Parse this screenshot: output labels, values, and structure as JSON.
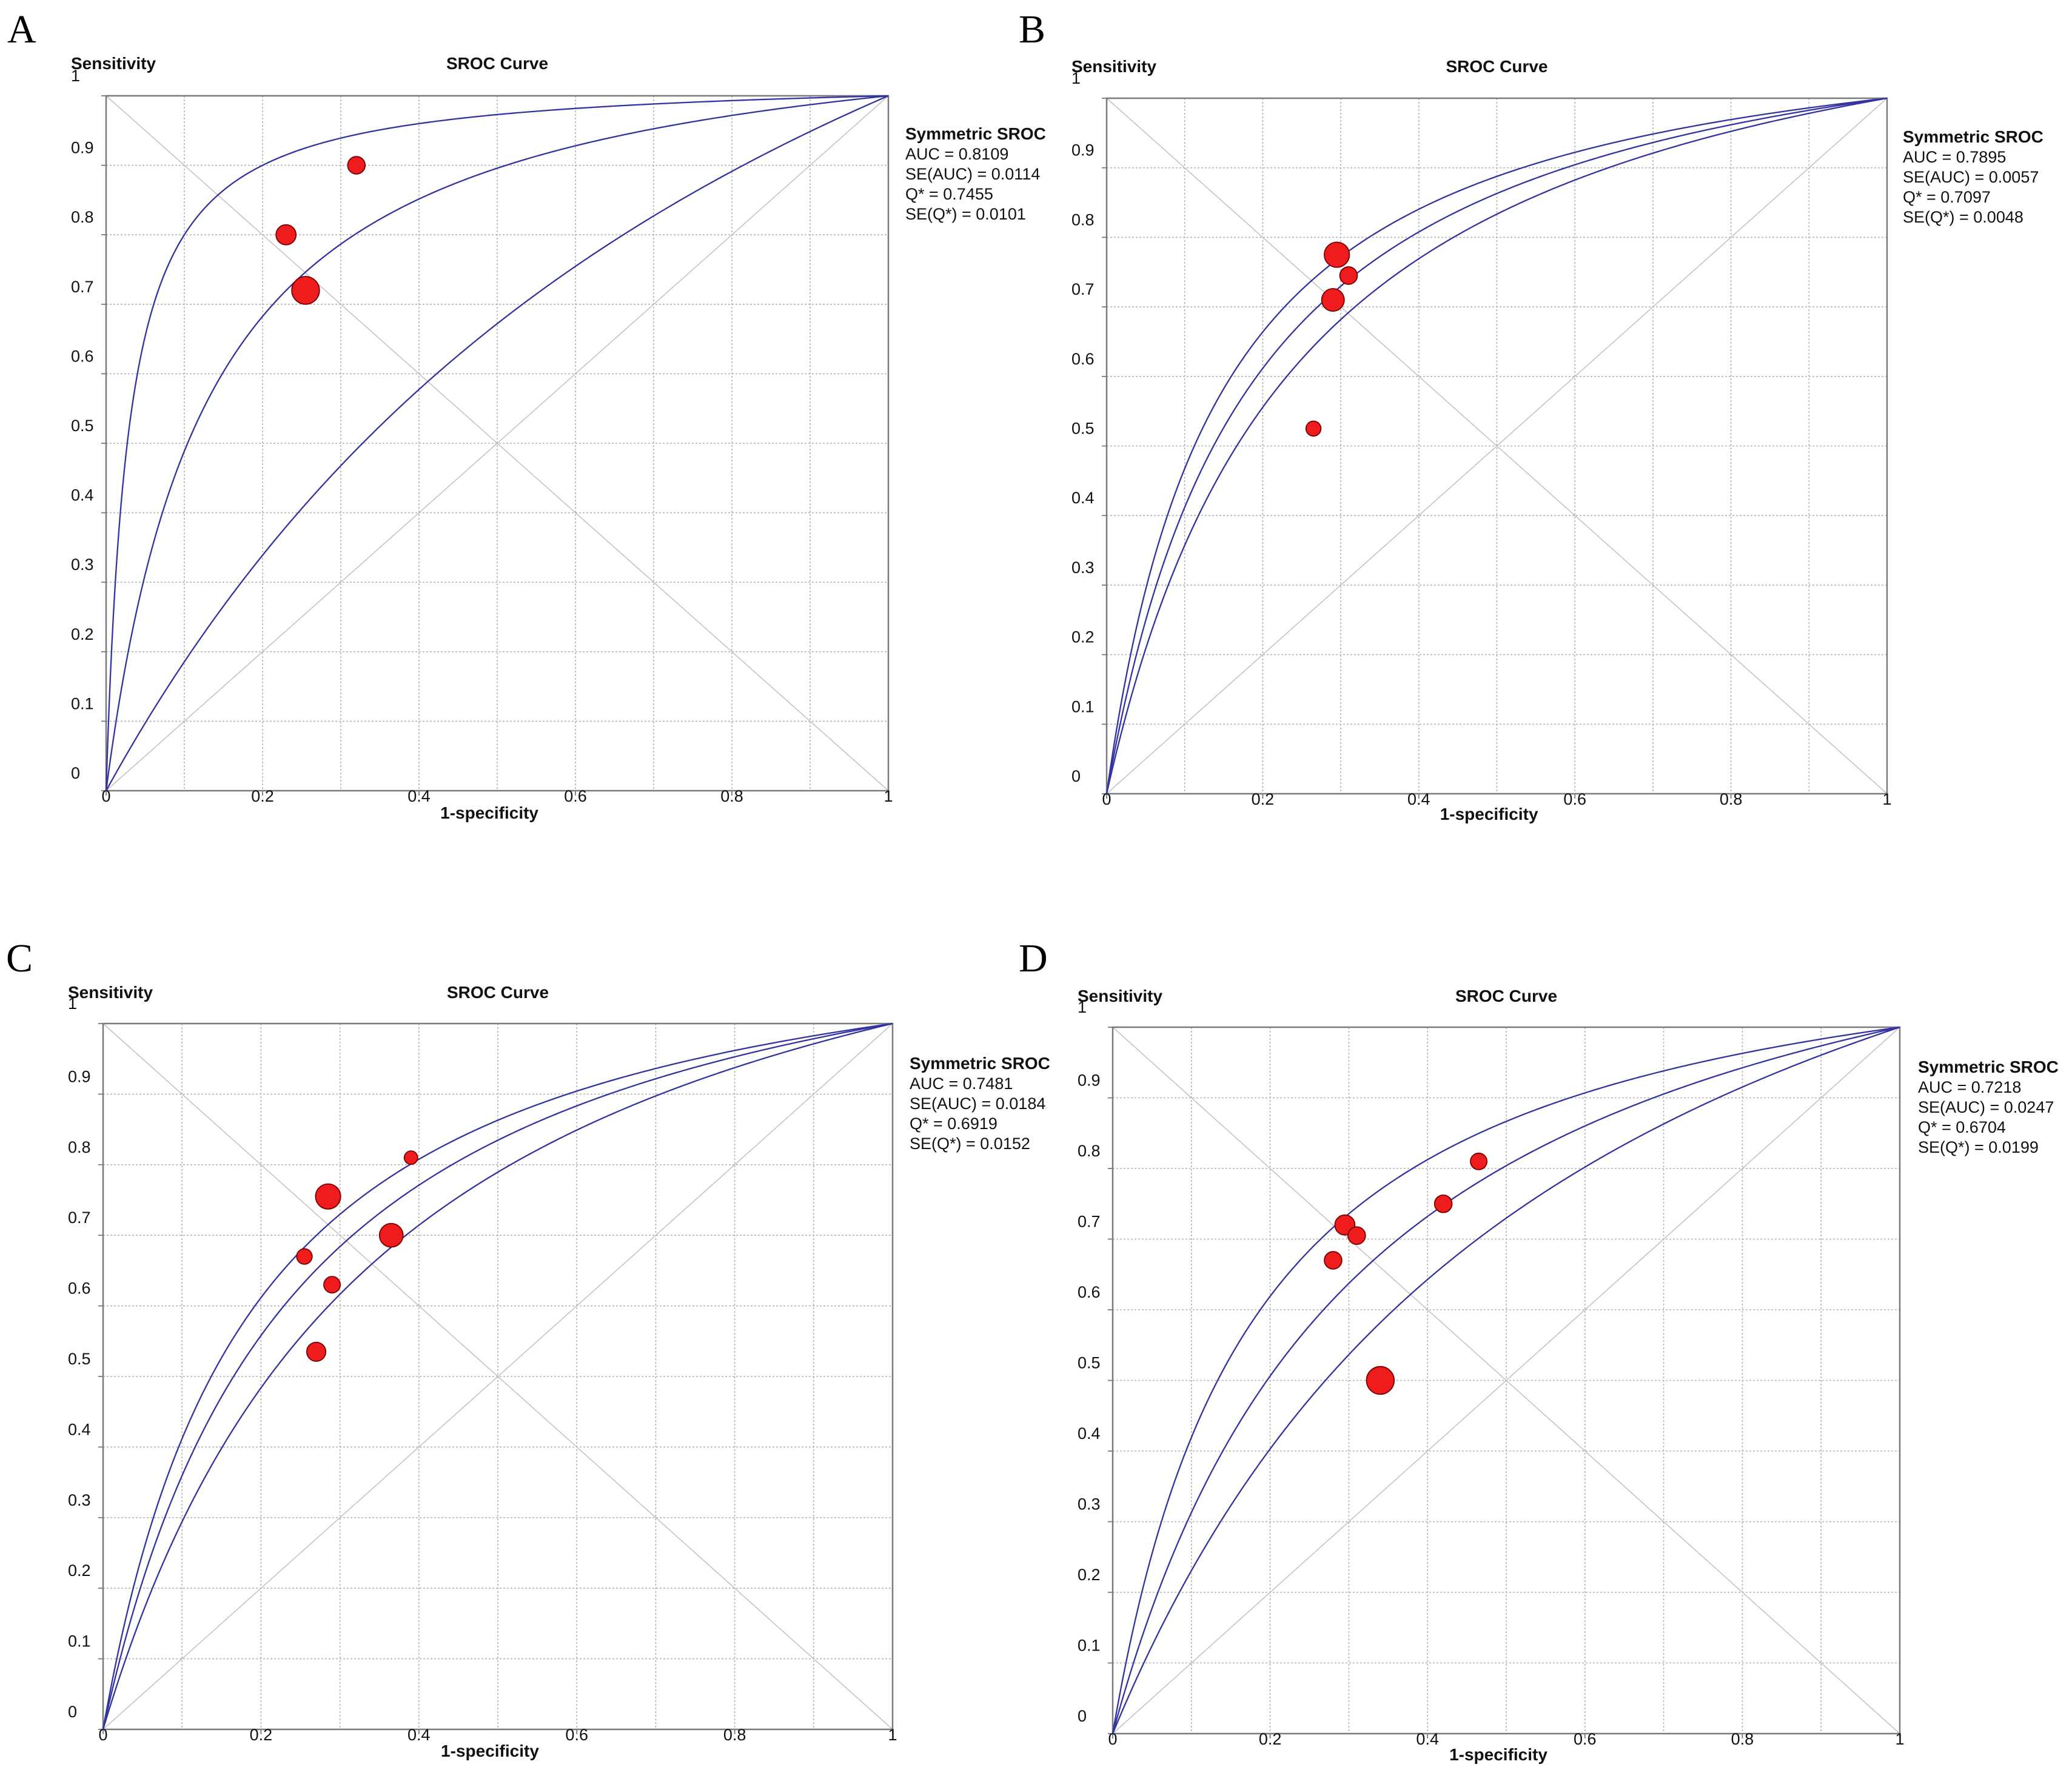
{
  "chart_data": [
    {
      "panel": "A",
      "type": "scatter",
      "title": "SROC Curve",
      "ylabel": "Sensitivity",
      "xlabel": "1-specificity",
      "xlim": [
        0,
        1
      ],
      "ylim": [
        0,
        1
      ],
      "y_ticks": [
        "0",
        "0.1",
        "0.2",
        "0.3",
        "0.4",
        "0.5",
        "0.6",
        "0.7",
        "0.8",
        "0.9",
        "1"
      ],
      "x_ticks": [
        "0",
        "0.2",
        "0.4",
        "0.6",
        "0.8",
        "1"
      ],
      "stats": {
        "title": "Symmetric SROC",
        "lines": [
          "AUC = 0.8109",
          "SE(AUC) = 0.0114",
          "Q* = 0.7455",
          "SE(Q*) = 0.0101"
        ]
      },
      "curve_dor": [
        36.0,
        8.6,
        2.05
      ],
      "points": [
        {
          "x": 0.32,
          "y": 0.9,
          "size": 2
        },
        {
          "x": 0.23,
          "y": 0.8,
          "size": 2.5
        },
        {
          "x": 0.255,
          "y": 0.72,
          "size": 4
        }
      ],
      "colors": {
        "curve": "#3232a0",
        "point": "#ee1c1c"
      }
    },
    {
      "panel": "B",
      "type": "scatter",
      "title": "SROC Curve",
      "ylabel": "Sensitivity",
      "xlabel": "1-specificity",
      "xlim": [
        0,
        1
      ],
      "ylim": [
        0,
        1
      ],
      "y_ticks": [
        "0",
        "0.1",
        "0.2",
        "0.3",
        "0.4",
        "0.5",
        "0.6",
        "0.7",
        "0.8",
        "0.9",
        "1"
      ],
      "x_ticks": [
        "0",
        "0.2",
        "0.4",
        "0.6",
        "0.8",
        "1"
      ],
      "stats": {
        "title": "Symmetric SROC",
        "lines": [
          "AUC = 0.7895",
          "SE(AUC) = 0.0057",
          "Q* = 0.7097",
          "SE(Q*) = 0.0048"
        ]
      },
      "curve_dor": [
        7.9,
        6.3,
        5.0
      ],
      "points": [
        {
          "x": 0.295,
          "y": 0.775,
          "size": 3.5
        },
        {
          "x": 0.31,
          "y": 0.745,
          "size": 2
        },
        {
          "x": 0.29,
          "y": 0.71,
          "size": 3
        },
        {
          "x": 0.265,
          "y": 0.525,
          "size": 1.5
        }
      ],
      "colors": {
        "curve": "#3232a0",
        "point": "#ee1c1c"
      }
    },
    {
      "panel": "C",
      "type": "scatter",
      "title": "SROC Curve",
      "ylabel": "Sensitivity",
      "xlabel": "1-specificity",
      "xlim": [
        0,
        1
      ],
      "ylim": [
        0,
        1
      ],
      "y_ticks": [
        "0",
        "0.1",
        "0.2",
        "0.3",
        "0.4",
        "0.5",
        "0.6",
        "0.7",
        "0.8",
        "0.9",
        "1"
      ],
      "x_ticks": [
        "0",
        "0.2",
        "0.4",
        "0.6",
        "0.8",
        "1"
      ],
      "stats": {
        "title": "Symmetric SROC",
        "lines": [
          "AUC = 0.7481",
          "SE(AUC) = 0.0184",
          "Q* = 0.6919",
          "SE(Q*) = 0.0152"
        ]
      },
      "curve_dor": [
        6.3,
        5.05,
        3.75
      ],
      "points": [
        {
          "x": 0.39,
          "y": 0.81,
          "size": 1.2
        },
        {
          "x": 0.285,
          "y": 0.755,
          "size": 3.5
        },
        {
          "x": 0.365,
          "y": 0.7,
          "size": 3.2
        },
        {
          "x": 0.255,
          "y": 0.67,
          "size": 1.6
        },
        {
          "x": 0.29,
          "y": 0.63,
          "size": 1.8
        },
        {
          "x": 0.27,
          "y": 0.535,
          "size": 2.3
        }
      ],
      "colors": {
        "curve": "#3232a0",
        "point": "#ee1c1c"
      }
    },
    {
      "panel": "D",
      "type": "scatter",
      "title": "SROC Curve",
      "ylabel": "Sensitivity",
      "xlabel": "1-specificity",
      "xlim": [
        0,
        1
      ],
      "ylim": [
        0,
        1
      ],
      "y_ticks": [
        "0",
        "0.1",
        "0.2",
        "0.3",
        "0.4",
        "0.5",
        "0.6",
        "0.7",
        "0.8",
        "0.9",
        "1"
      ],
      "x_ticks": [
        "0",
        "0.2",
        "0.4",
        "0.6",
        "0.8",
        "1"
      ],
      "stats": {
        "title": "Symmetric SROC",
        "lines": [
          "AUC = 0.7218",
          "SE(AUC) = 0.0247",
          "Q* = 0.6704",
          "SE(Q*) = 0.0199"
        ]
      },
      "curve_dor": [
        6.5,
        4.1,
        2.7
      ],
      "points": [
        {
          "x": 0.465,
          "y": 0.81,
          "size": 1.8
        },
        {
          "x": 0.42,
          "y": 0.75,
          "size": 2
        },
        {
          "x": 0.295,
          "y": 0.72,
          "size": 2.5
        },
        {
          "x": 0.31,
          "y": 0.705,
          "size": 2
        },
        {
          "x": 0.28,
          "y": 0.67,
          "size": 2
        },
        {
          "x": 0.34,
          "y": 0.5,
          "size": 4
        }
      ],
      "colors": {
        "curve": "#3232a0",
        "point": "#ee1c1c"
      }
    }
  ]
}
